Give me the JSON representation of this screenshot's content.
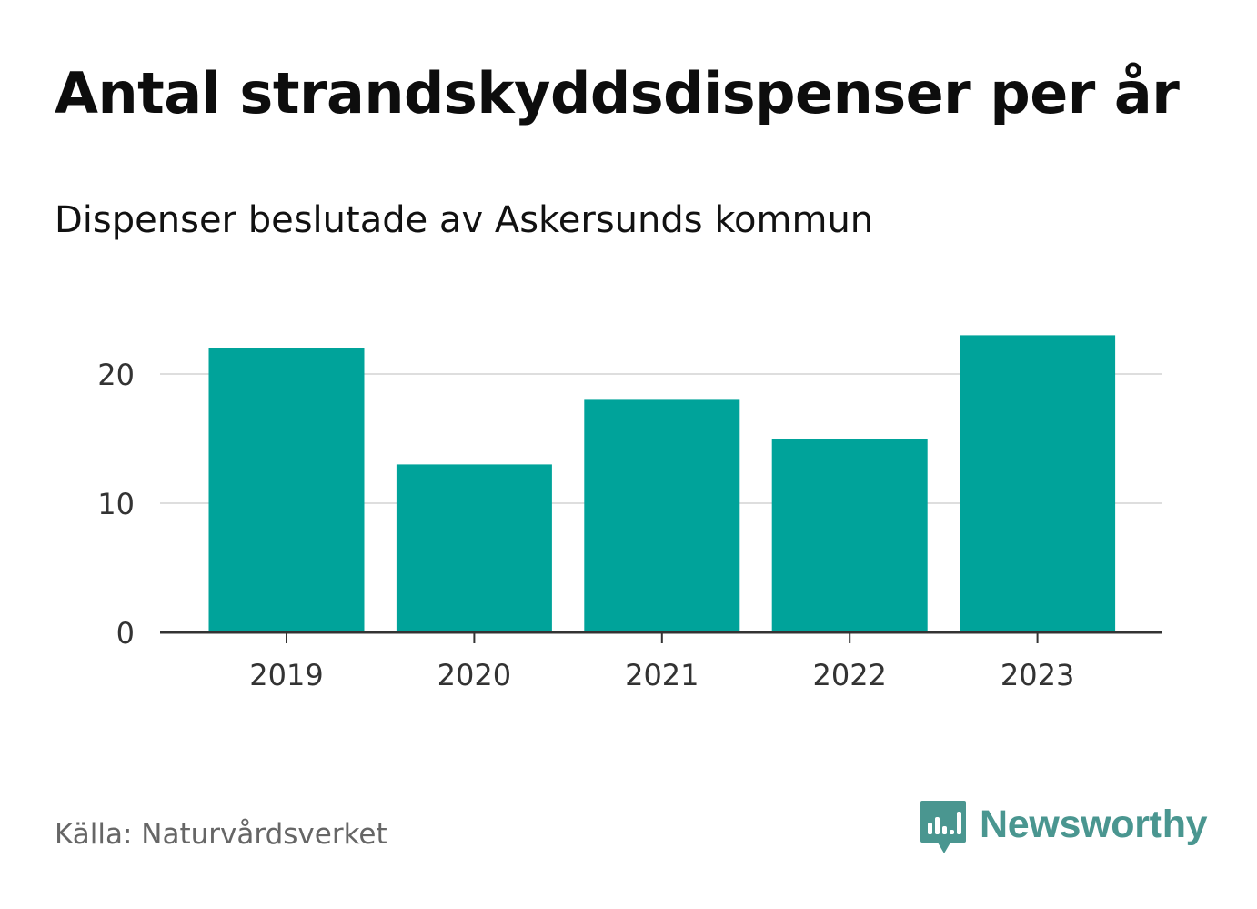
{
  "chart_data": {
    "type": "bar",
    "title": "Antal strandskyddsdispenser per år",
    "subtitle": "Dispenser beslutade av Askersunds kommun",
    "xlabel": "",
    "ylabel": "",
    "categories": [
      "2019",
      "2020",
      "2021",
      "2022",
      "2023"
    ],
    "values": [
      22,
      13,
      18,
      15,
      23
    ],
    "ylim": [
      0,
      25
    ],
    "yticks": [
      0,
      10,
      20
    ],
    "ytick_labels": [
      "0",
      "10",
      "20"
    ],
    "grid": true,
    "legend": "none",
    "colors": {
      "bar": "#00a39a",
      "gridline": "#dedede",
      "axis": "#333333"
    }
  },
  "footer": {
    "source": "Källa: Naturvårdsverket",
    "brand": "Newsworthy",
    "brand_icon": "bar-chart-speech-bubble-icon",
    "brand_color": "#4a9690"
  }
}
